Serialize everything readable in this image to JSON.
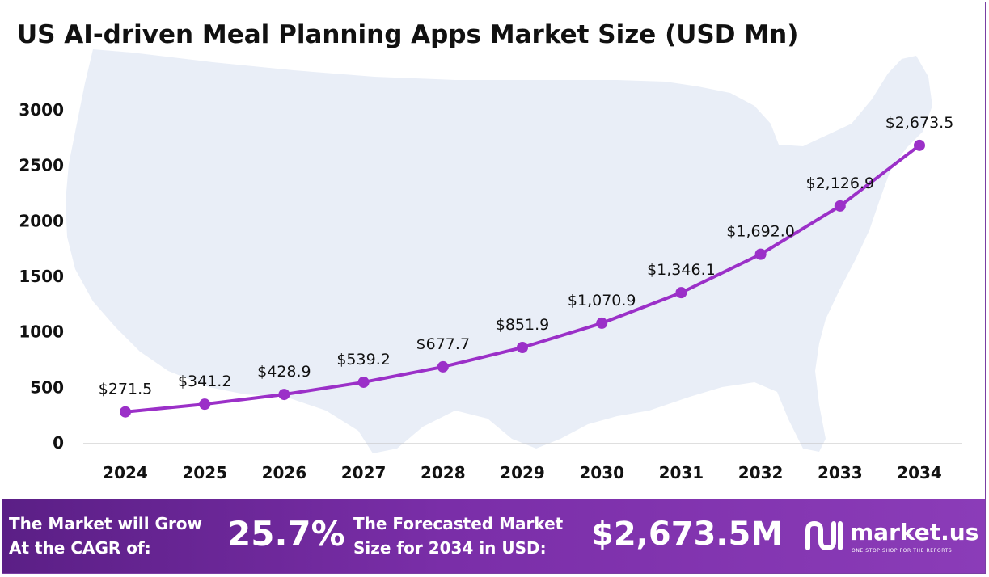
{
  "title": "US AI-driven Meal Planning Apps Market Size (USD Mn)",
  "colors": {
    "line": "#9b30c8",
    "point": "#9b30c8",
    "map": "#e9eef7",
    "grid": "#bfbfbf"
  },
  "chart_data": {
    "type": "line",
    "title": "US AI-driven Meal Planning Apps Market Size (USD Mn)",
    "xlabel": "",
    "ylabel": "",
    "categories": [
      "2024",
      "2025",
      "2026",
      "2027",
      "2028",
      "2029",
      "2030",
      "2031",
      "2032",
      "2033",
      "2034"
    ],
    "values": [
      271.5,
      341.2,
      428.9,
      539.2,
      677.7,
      851.9,
      1070.9,
      1346.1,
      1692.0,
      2126.9,
      2673.5
    ],
    "data_labels": [
      "$271.5",
      "$341.2",
      "$428.9",
      "$539.2",
      "$677.7",
      "$851.9",
      "$1,070.9",
      "$1,346.1",
      "$1,692.0",
      "$2,126.9",
      "$2,673.5"
    ],
    "yticks": [
      "0",
      "500",
      "1000",
      "1500",
      "2000",
      "2500",
      "3000"
    ],
    "ytick_values": [
      0,
      500,
      1000,
      1500,
      2000,
      2500,
      3000
    ],
    "ylim": [
      0,
      3000
    ],
    "grid": false,
    "legend": "none"
  },
  "footer": {
    "cagr_label_line1": "The Market will Grow",
    "cagr_label_line2": "At the CAGR of:",
    "cagr_value": "25.7%",
    "forecast_label_line1": "The Forecasted Market",
    "forecast_label_line2": "Size for 2034 in USD:",
    "forecast_value": "$2,673.5M",
    "brand": "market.us",
    "brand_tagline": "ONE STOP SHOP FOR THE REPORTS",
    "logo_icon": "market-us-logo-icon"
  }
}
